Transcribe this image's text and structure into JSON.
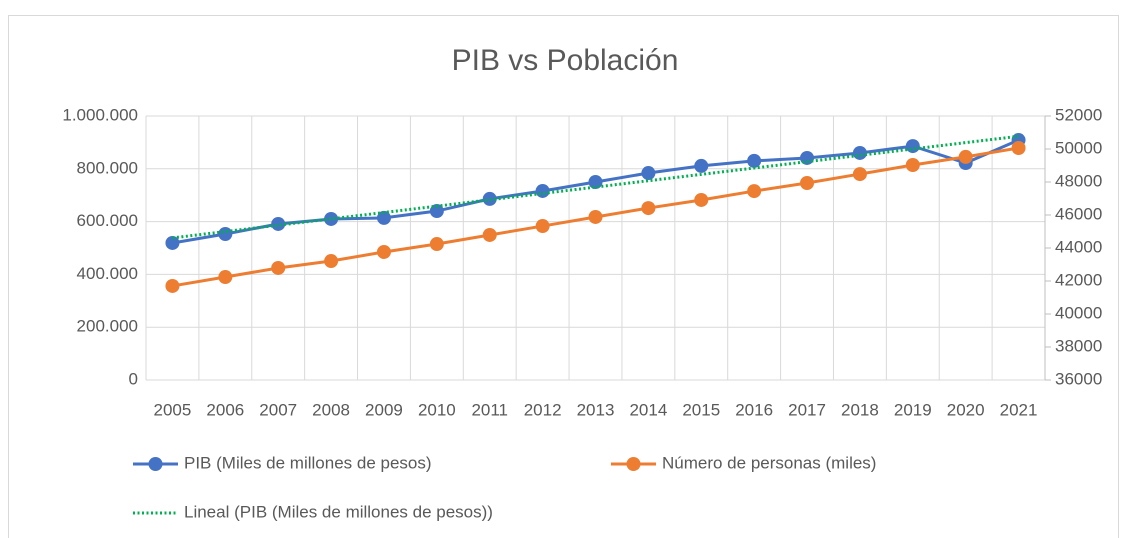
{
  "chart_data": {
    "type": "line",
    "title": "PIB vs Población",
    "categories": [
      "2005",
      "2006",
      "2007",
      "2008",
      "2009",
      "2010",
      "2011",
      "2012",
      "2013",
      "2014",
      "2015",
      "2016",
      "2017",
      "2018",
      "2019",
      "2020",
      "2021"
    ],
    "series": [
      {
        "name": "PIB (Miles de millones de pesos)",
        "color": "#4472c4",
        "axis": "y",
        "values": [
          519000,
          553000,
          591000,
          610000,
          614000,
          640000,
          686000,
          716000,
          750000,
          784000,
          811000,
          830000,
          841000,
          860000,
          886000,
          822000,
          909000
        ],
        "trendline": {
          "type": "linear",
          "name": "Lineal (PIB (Miles de millones de pesos))",
          "color": "#00b050"
        }
      },
      {
        "name": "Número de personas (miles)",
        "color": "#ed7d31",
        "axis": "y2",
        "values": [
          41700,
          42240,
          42790,
          43210,
          43760,
          44240,
          44790,
          45330,
          45880,
          46420,
          46910,
          47450,
          47940,
          48480,
          49030,
          49520,
          50060
        ]
      }
    ],
    "ylim": [
      0,
      1000000
    ],
    "yticks": [
      0,
      {
        "value": 200000,
        "label": "200.000"
      },
      {
        "value": 400000,
        "label": "400.000"
      },
      {
        "value": 600000,
        "label": "600.000"
      },
      {
        "value": 800000,
        "label": "800.000"
      },
      {
        "value": 1000000,
        "label": "1.000.000"
      }
    ],
    "y2lim": [
      36000,
      52000
    ],
    "y2ticks": [
      36000,
      38000,
      40000,
      42000,
      44000,
      46000,
      48000,
      50000,
      52000
    ],
    "grid": true,
    "legend": "bottom"
  }
}
